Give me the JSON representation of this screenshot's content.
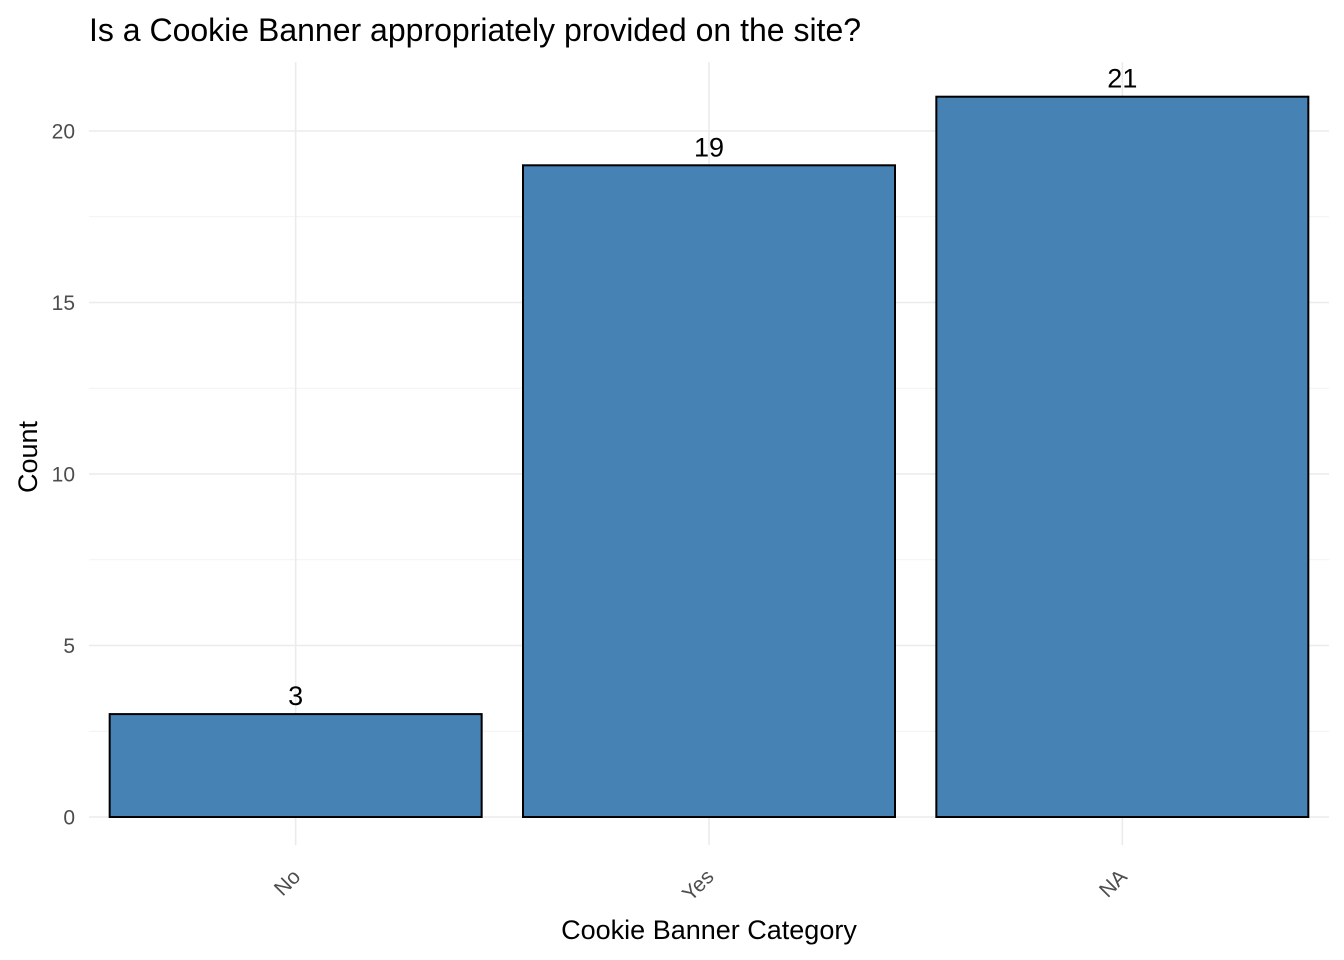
{
  "chart_data": {
    "type": "bar",
    "title": "Is a Cookie Banner appropriately provided on the site?",
    "xlabel": "Cookie Banner Category",
    "ylabel": "Count",
    "categories": [
      "No",
      "Yes",
      "NA"
    ],
    "values": [
      3,
      19,
      21
    ],
    "data_labels": [
      "3",
      "19",
      "21"
    ],
    "ylim": [
      0,
      22
    ],
    "yticks": [
      0,
      5,
      10,
      15,
      20
    ],
    "ytick_labels": [
      "0",
      "5",
      "10",
      "15",
      "20"
    ],
    "grid": true,
    "legend": "none",
    "bar_color": "#4682b4",
    "bar_outline_color": "#000000",
    "x_tick_rotation": 45
  }
}
